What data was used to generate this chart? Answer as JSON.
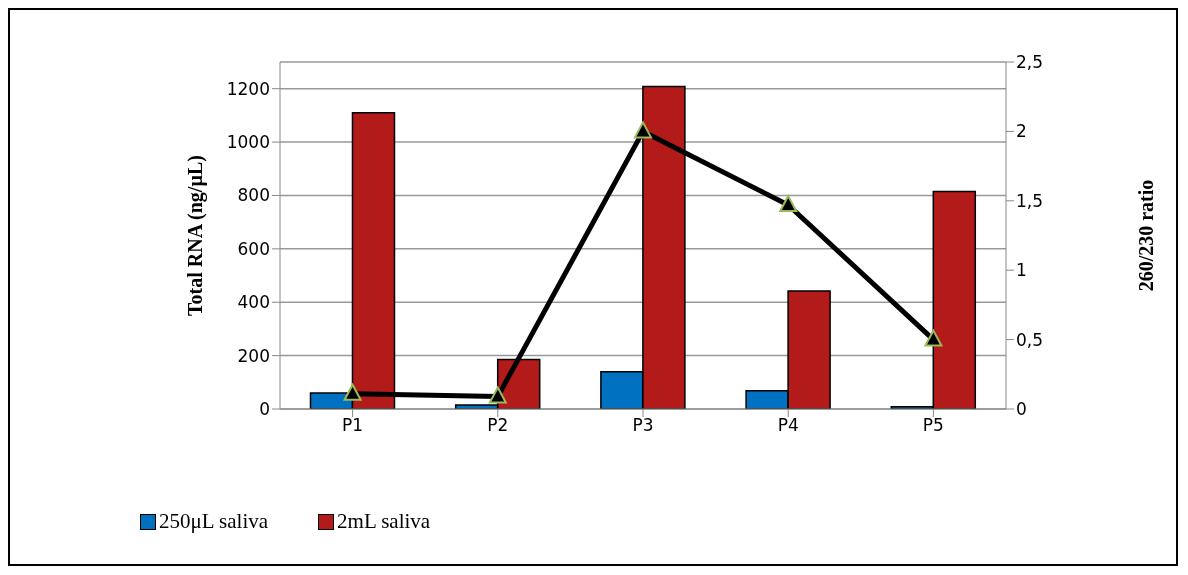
{
  "chart_data": {
    "type": "bar",
    "categories": [
      "P1",
      "P2",
      "P3",
      "P4",
      "P5"
    ],
    "series": [
      {
        "name": "250μL saliva",
        "color": "#0070c0",
        "values": [
          60,
          15,
          140,
          68,
          8
        ]
      },
      {
        "name": "2mL saliva",
        "color": "#b31b1b",
        "values": [
          1110,
          185,
          1208,
          442,
          815
        ]
      },
      {
        "type": "line",
        "axis": "y2",
        "color": "#000000",
        "values": [
          0.11,
          0.09,
          2.0,
          1.47,
          0.5
        ]
      }
    ],
    "ylabel": "Total RNA (ng/µL)",
    "y2label": "260/230 ratio",
    "ylim": [
      0,
      1300
    ],
    "yticks": [
      0,
      200,
      400,
      600,
      800,
      1000,
      1200
    ],
    "y2lim": [
      0,
      2.5
    ],
    "y2ticks": [
      0,
      {
        "value": 0.5,
        "label": "0,5"
      },
      1,
      {
        "value": 1.5,
        "label": "1,5"
      },
      2,
      {
        "value": 2.5,
        "label": "2,5"
      }
    ],
    "grid": "y",
    "legend": "bottom left",
    "marker": "triangle",
    "line_style": "solid"
  }
}
